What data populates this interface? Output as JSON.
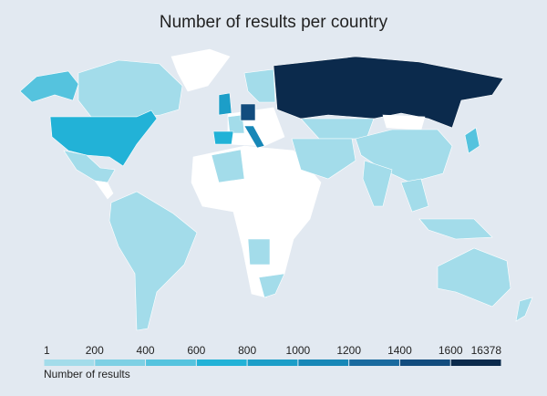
{
  "title": "Number of results per country",
  "legend": {
    "title": "Number of results",
    "ticks": [
      1,
      200,
      400,
      600,
      800,
      1000,
      1200,
      1400,
      1600,
      16378
    ],
    "colors": [
      "#a3dcea",
      "#7ed0e4",
      "#55c3de",
      "#22b2d7",
      "#1c9ec8",
      "#1787b7",
      "#196a9f",
      "#124c7e",
      "#0b2a4c"
    ]
  }
}
